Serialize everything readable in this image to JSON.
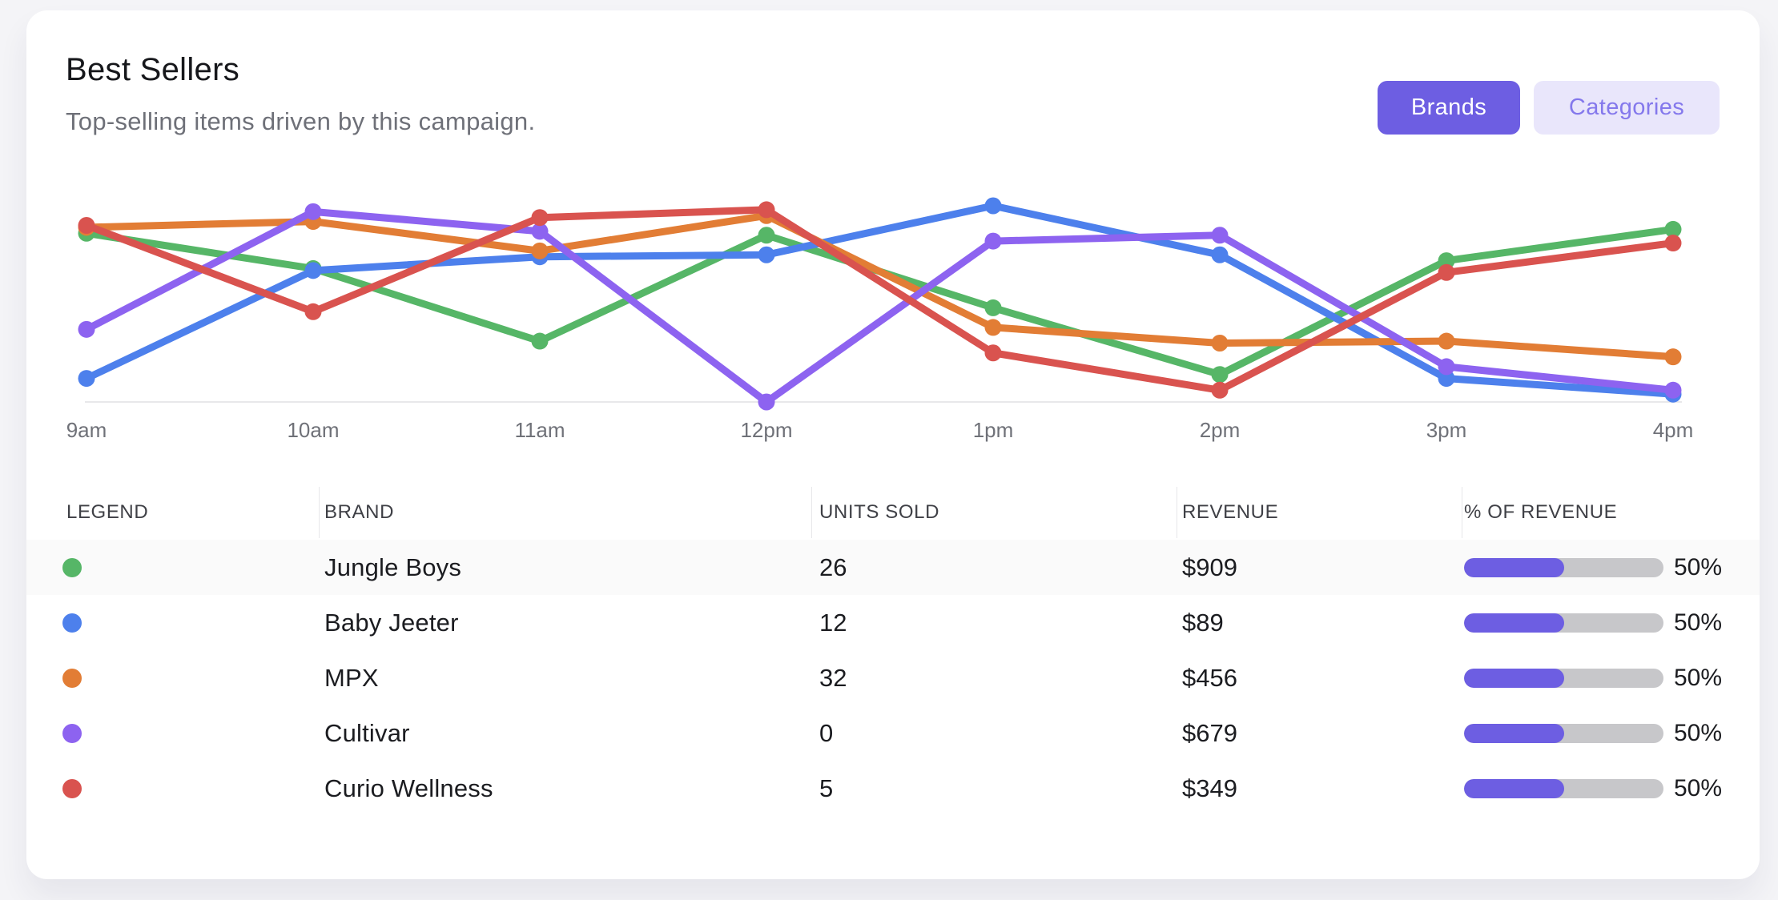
{
  "page": {
    "background": "#f4f4f7"
  },
  "card": {
    "title": "Best Sellers",
    "subtitle": "Top-selling items driven by this campaign.",
    "buttons": [
      {
        "label": "Brands",
        "active": true
      },
      {
        "label": "Categories",
        "active": false
      }
    ]
  },
  "colors": {
    "accent_indigo": "#6d5ee2",
    "accent_indigo_light_bg": "#e9e6fb",
    "accent_indigo_light_text": "#8478ec",
    "bar_track_gray": "#c7c7ca",
    "axis_line": "#e8e8ea",
    "axis_label": "#6f7178"
  },
  "chart_data": {
    "type": "line",
    "x_labels": [
      "9am",
      "10am",
      "11am",
      "12pm",
      "1pm",
      "2pm",
      "3pm",
      "4pm"
    ],
    "ylim": [
      0,
      100
    ],
    "grid": false,
    "legend_position": "table-below",
    "series": [
      {
        "name": "Jungle Boys",
        "color": "#56b667",
        "values": [
          86,
          68,
          31,
          85,
          48,
          14,
          72,
          88
        ]
      },
      {
        "name": "Baby Jeeter",
        "color": "#4d80ec",
        "values": [
          12,
          67,
          74,
          75,
          100,
          75,
          12,
          4
        ]
      },
      {
        "name": "MPX",
        "color": "#e27d35",
        "values": [
          89,
          92,
          77,
          95,
          38,
          30,
          31,
          23
        ]
      },
      {
        "name": "Cultivar",
        "color": "#8d63f0",
        "values": [
          37,
          97,
          87,
          0,
          82,
          85,
          18,
          6
        ]
      },
      {
        "name": "Curio Wellness",
        "color": "#d9534f",
        "values": [
          90,
          46,
          94,
          98,
          25,
          6,
          66,
          81
        ]
      }
    ]
  },
  "table": {
    "columns": [
      "LEGEND",
      "BRAND",
      "UNITS SOLD",
      "REVENUE",
      "% OF REVENUE"
    ],
    "rows": [
      {
        "brand": "Jungle Boys",
        "color": "#56b667",
        "units": "26",
        "revenue": "$909",
        "pct": 50,
        "pct_label": "50%"
      },
      {
        "brand": "Baby Jeeter",
        "color": "#4d80ec",
        "units": "12",
        "revenue": "$89",
        "pct": 50,
        "pct_label": "50%"
      },
      {
        "brand": "MPX",
        "color": "#e27d35",
        "units": "32",
        "revenue": "$456",
        "pct": 50,
        "pct_label": "50%"
      },
      {
        "brand": "Cultivar",
        "color": "#8d63f0",
        "units": "0",
        "revenue": "$679",
        "pct": 50,
        "pct_label": "50%"
      },
      {
        "brand": "Curio Wellness",
        "color": "#d9534f",
        "units": "5",
        "revenue": "$349",
        "pct": 50,
        "pct_label": "50%"
      }
    ]
  }
}
